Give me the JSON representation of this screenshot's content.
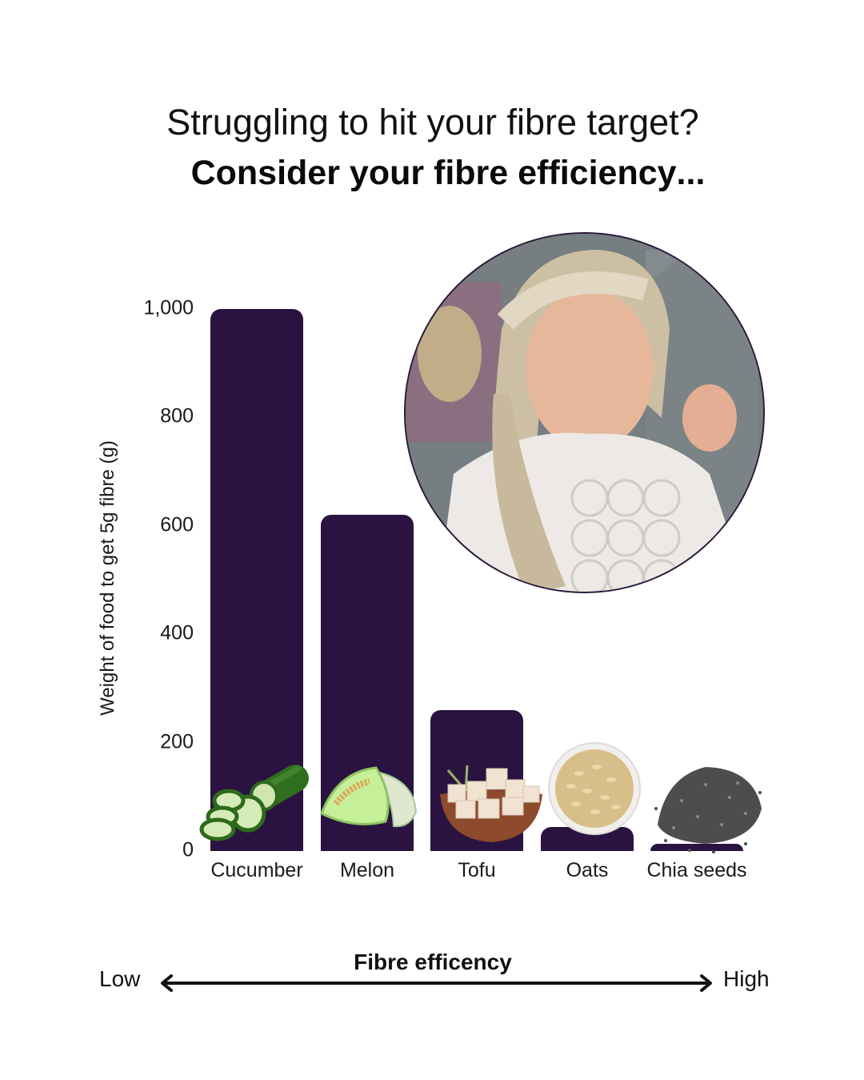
{
  "colors": {
    "bar": "#2a1340",
    "accent": "#f5cc1f",
    "text": "#111111",
    "background": "#ffffff"
  },
  "header": {
    "line1": "Struggling to hit your fibre target?",
    "line2_prefix": "Consider your fibre ",
    "line2_highlight": "efficiency",
    "line2_suffix": "..."
  },
  "photo": {
    "description": "circular-video-overlay-presenter",
    "icon": "person-photo"
  },
  "chart_data": {
    "type": "bar",
    "title": "",
    "xlabel": "",
    "ylabel": "Weight of food to get 5g fibre (g)",
    "categories": [
      "Cucumber",
      "Melon",
      "Tofu",
      "Oats",
      "Chia seeds"
    ],
    "values": [
      1000,
      620,
      260,
      45,
      14
    ],
    "ylim": [
      0,
      1000
    ],
    "yticks": [
      "0",
      "200",
      "400",
      "600",
      "800",
      "1,000"
    ],
    "ytick_values": [
      0,
      200,
      400,
      600,
      800,
      1000
    ],
    "grid": false,
    "legend": null,
    "bar_icons": [
      "cucumber-icon",
      "melon-icon",
      "tofu-bowl-icon",
      "oats-bowl-icon",
      "chia-seeds-icon"
    ],
    "annotation_axis": {
      "label": "Fibre efficency",
      "left": "Low",
      "right": "High"
    }
  }
}
